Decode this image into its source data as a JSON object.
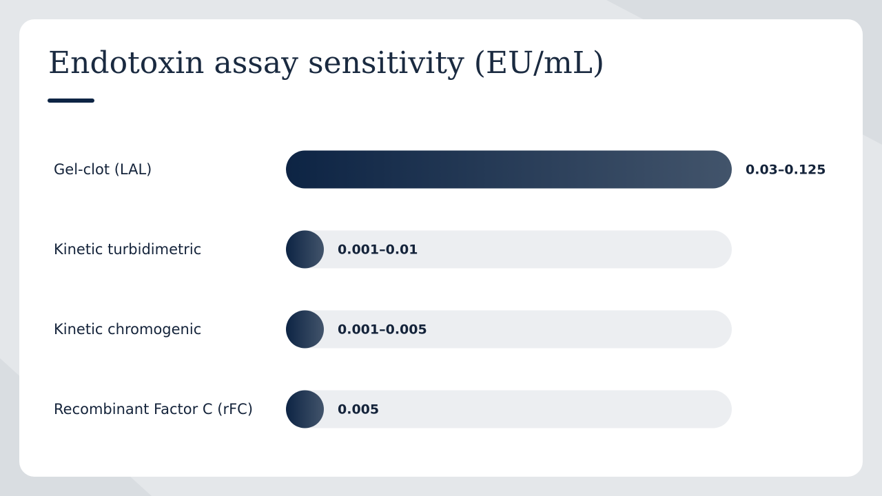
{
  "chart_data": {
    "type": "bar",
    "title": "Endotoxin assay sensitivity (EU/mL)",
    "categories": [
      "Gel-clot (LAL)",
      "Kinetic turbidimetric",
      "Kinetic chromogenic",
      "Recombinant Factor C (rFC)"
    ],
    "values": [
      0.125,
      0.01,
      0.005,
      0.005
    ],
    "value_labels": [
      "0.03–0.125",
      "0.001–0.01",
      "0.001–0.005",
      "0.005"
    ],
    "xlim": [
      0,
      0.125
    ],
    "color": "#0d2444"
  }
}
